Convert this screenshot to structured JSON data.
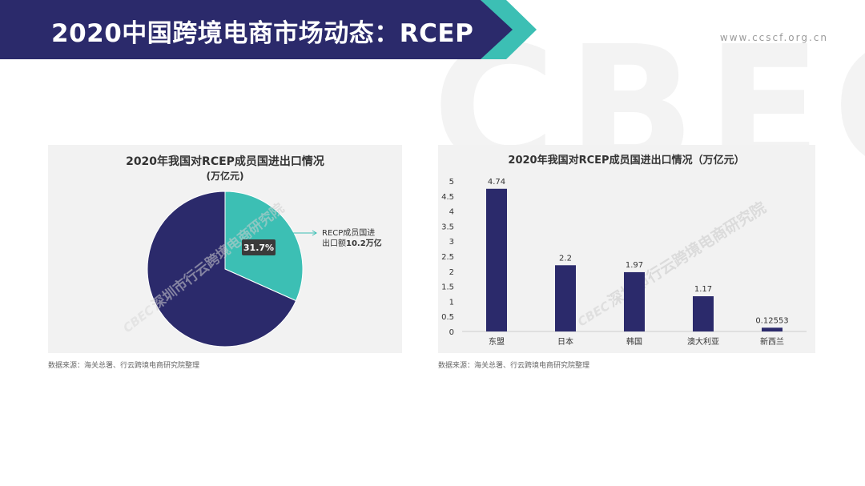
{
  "header": {
    "title": "2020中国跨境电商市场动态：RCEP",
    "url": "www.ccscf.org.cn",
    "watermark": "CBEC"
  },
  "colors": {
    "navy": "#2b2a6b",
    "teal": "#3cbfb4",
    "panel_bg": "#f2f2f2"
  },
  "chart_data": [
    {
      "type": "pie",
      "title": "2020年我国对RCEP成员国进出口情况",
      "subtitle": "(万亿元)",
      "slices": [
        {
          "value": 31.7,
          "color": "#3cbfb4"
        },
        {
          "value": 68.3,
          "color": "#2b2a6b"
        }
      ],
      "data_label": "31.7%",
      "annotation": {
        "line1": "RECP成员国进",
        "line2_prefix": "出口额",
        "line2_bold": "10.2万亿"
      },
      "watermark": {
        "logo": "CBEC",
        "text": "深圳市行云跨境电商研究院"
      },
      "source": "数据来源：海关总署、行云跨境电商研究院整理"
    },
    {
      "type": "bar",
      "title": "2020年我国对RCEP成员国进出口情况（万亿元）",
      "categories": [
        "东盟",
        "日本",
        "韩国",
        "澳大利亚",
        "新西兰"
      ],
      "values": [
        4.74,
        2.2,
        1.97,
        1.17,
        0.12553
      ],
      "value_labels": [
        "4.74",
        "2.2",
        "1.97",
        "1.17",
        "0.12553"
      ],
      "ylim": [
        0,
        5
      ],
      "yticks": [
        "0",
        "0.5",
        "1",
        "1.5",
        "2",
        "2.5",
        "3",
        "3.5",
        "4",
        "4.5",
        "5"
      ],
      "bar_color": "#2b2a6b",
      "grid": false,
      "watermark": {
        "logo": "CBEC",
        "text": "深圳市行云跨境电商研究院"
      },
      "source": "数据来源：海关总署、行云跨境电商研究院整理"
    }
  ]
}
